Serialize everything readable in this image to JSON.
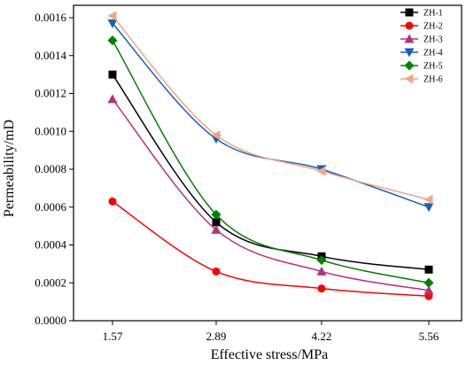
{
  "chart_data": {
    "type": "line",
    "title": "",
    "xlabel": "Effective stress/MPa",
    "ylabel": "Permeability/mD",
    "x": [
      1.57,
      2.89,
      4.22,
      5.56
    ],
    "x_tick_labels": [
      "1.57",
      "2.89",
      "4.22",
      "5.56"
    ],
    "ylim": [
      0,
      0.0016
    ],
    "y_tick_labels": [
      "0.0000",
      "0.0002",
      "0.0004",
      "0.0006",
      "0.0008",
      "0.0010",
      "0.0012",
      "0.0014",
      "0.0016"
    ],
    "legend_position": "top-right",
    "grid": false,
    "series": [
      {
        "name": "ZH-1",
        "color": "#000000",
        "marker": "square",
        "values": [
          0.0013,
          0.00052,
          0.00034,
          0.00027
        ]
      },
      {
        "name": "ZH-2",
        "color": "#ff0000",
        "marker": "circle",
        "values": [
          0.00063,
          0.00026,
          0.00017,
          0.00013
        ]
      },
      {
        "name": "ZH-3",
        "color": "#b3337a",
        "marker": "triangle-up",
        "values": [
          0.00117,
          0.00048,
          0.00026,
          0.00016
        ]
      },
      {
        "name": "ZH-4",
        "color": "#1560bd",
        "marker": "triangle-down",
        "values": [
          0.00157,
          0.00096,
          0.0008,
          0.0006
        ]
      },
      {
        "name": "ZH-5",
        "color": "#008000",
        "marker": "diamond",
        "values": [
          0.00148,
          0.00056,
          0.00032,
          0.0002
        ]
      },
      {
        "name": "ZH-6",
        "color": "#f4a582",
        "marker": "triangle-left",
        "values": [
          0.00161,
          0.00098,
          0.00079,
          0.00064
        ]
      }
    ]
  }
}
